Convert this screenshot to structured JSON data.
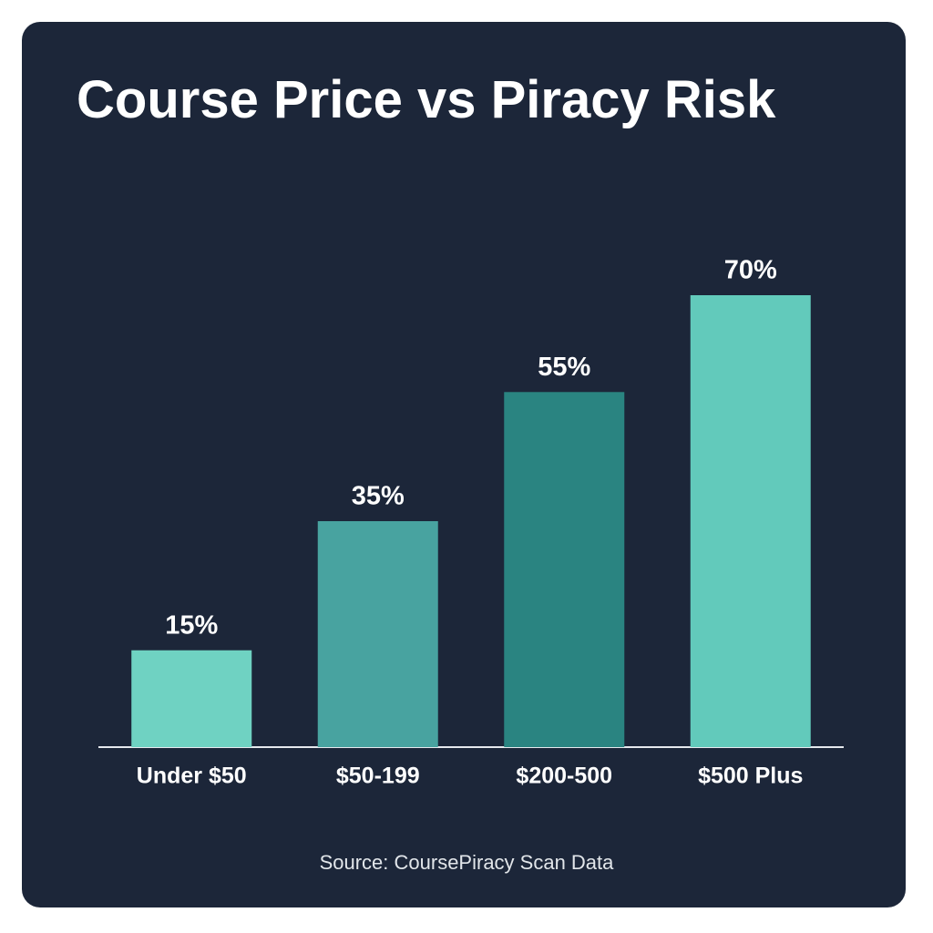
{
  "chart_data": {
    "type": "bar",
    "title": "Course Price vs Piracy Risk",
    "categories": [
      "Under $50",
      "$50-199",
      "$200-500",
      "$500 Plus"
    ],
    "values": [
      15,
      35,
      55,
      70
    ],
    "value_labels": [
      "15%",
      "35%",
      "55%",
      "70%"
    ],
    "colors": [
      "#6fd2c2",
      "#48a3a0",
      "#2a8481",
      "#62cabb"
    ],
    "source": "Source: CoursePiracy Scan Data"
  }
}
